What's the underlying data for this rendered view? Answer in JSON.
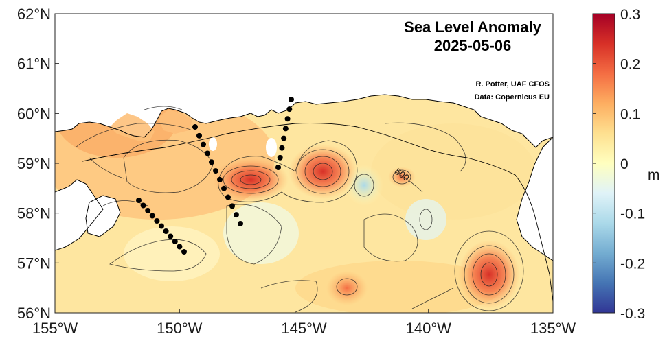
{
  "map": {
    "title": "Sea Level Anomaly",
    "date": "2025-05-06",
    "credit_author": "R. Potter, UAF CFOS",
    "credit_data": "Data: Copernicus EU",
    "contour_label": "500",
    "lat_ticks": [
      "62°N",
      "61°N",
      "60°N",
      "59°N",
      "58°N",
      "57°N",
      "56°N"
    ],
    "lon_ticks": [
      "155°W",
      "150°W",
      "145°W",
      "140°W",
      "135°W"
    ],
    "lon_range": [
      -155,
      -135
    ],
    "lat_range": [
      56,
      62
    ],
    "colorbar": {
      "unit": "m",
      "ticks": [
        "0.3",
        "0.2",
        "0.1",
        "0",
        "-0.1",
        "-0.2",
        "-0.3"
      ],
      "range": [
        -0.3,
        0.3
      ],
      "colormap": "RdYlBu_r"
    },
    "colors": {
      "land": "#ffffff",
      "coast": "#000000",
      "station": "#000000"
    }
  }
}
